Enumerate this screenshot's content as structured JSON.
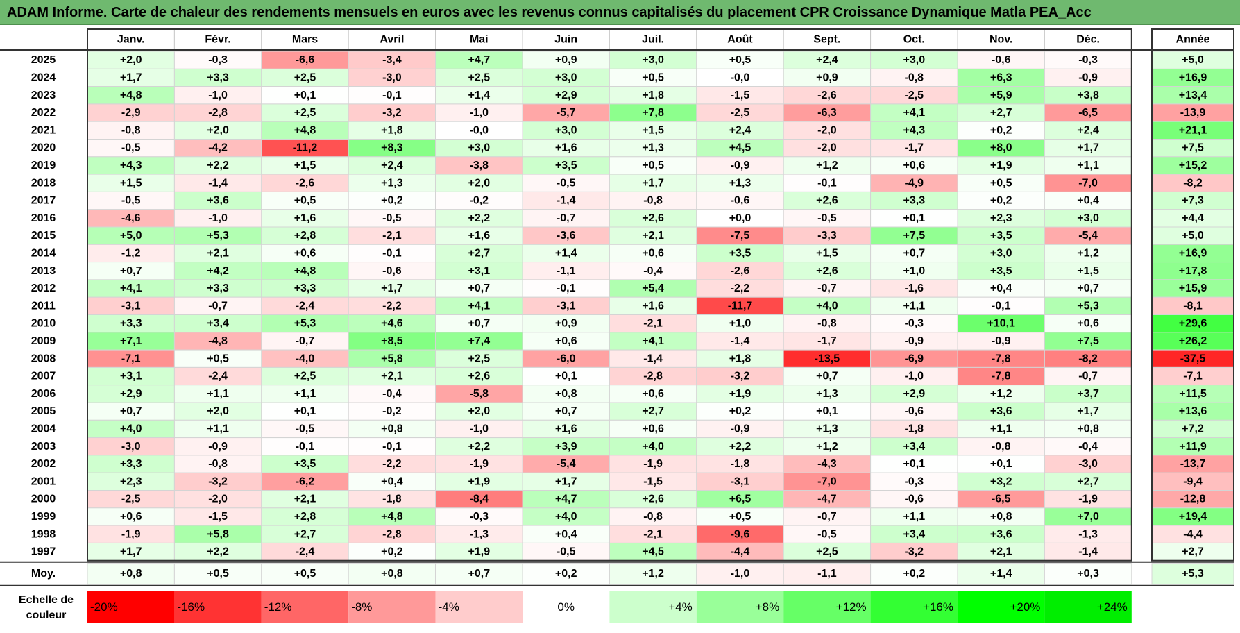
{
  "title": "ADAM Informe. Carte de chaleur des rendements mensuels en euros avec les revenus connus capitalisés du placement CPR Croissance Dynamique Matla PEA_Acc",
  "chart_data": {
    "type": "heatmap",
    "title": "ADAM Informe. Carte de chaleur des rendements mensuels en euros avec les revenus connus capitalisés du placement CPR Croissance Dynamique Matla PEA_Acc",
    "columns": [
      "Janv.",
      "Févr.",
      "Mars",
      "Avril",
      "Mai",
      "Juin",
      "Juil.",
      "Août",
      "Sept.",
      "Oct.",
      "Nov.",
      "Déc."
    ],
    "annual_column": "Année",
    "rows": [
      {
        "year": "2025",
        "values": [
          "+2,0",
          "-0,3",
          "-6,6",
          "-3,4",
          "+4,7",
          "+0,9",
          "+3,0",
          "+0,5",
          "+2,4",
          "+3,0",
          "-0,6",
          "-0,3"
        ],
        "annual": "+5,0"
      },
      {
        "year": "2024",
        "values": [
          "+1,7",
          "+3,3",
          "+2,5",
          "-3,0",
          "+2,5",
          "+3,0",
          "+0,5",
          "-0,0",
          "+0,9",
          "-0,8",
          "+6,3",
          "-0,9"
        ],
        "annual": "+16,9"
      },
      {
        "year": "2023",
        "values": [
          "+4,8",
          "-1,0",
          "+0,1",
          "-0,1",
          "+1,4",
          "+2,9",
          "+1,8",
          "-1,5",
          "-2,6",
          "-2,5",
          "+5,9",
          "+3,8"
        ],
        "annual": "+13,4"
      },
      {
        "year": "2022",
        "values": [
          "-2,9",
          "-2,8",
          "+2,5",
          "-3,2",
          "-1,0",
          "-5,7",
          "+7,8",
          "-2,5",
          "-6,3",
          "+4,1",
          "+2,7",
          "-6,5"
        ],
        "annual": "-13,9"
      },
      {
        "year": "2021",
        "values": [
          "-0,8",
          "+2,0",
          "+4,8",
          "+1,8",
          "-0,0",
          "+3,0",
          "+1,5",
          "+2,4",
          "-2,0",
          "+4,3",
          "+0,2",
          "+2,4"
        ],
        "annual": "+21,1"
      },
      {
        "year": "2020",
        "values": [
          "-0,5",
          "-4,2",
          "-11,2",
          "+8,3",
          "+3,0",
          "+1,6",
          "+1,3",
          "+4,5",
          "-2,0",
          "-1,7",
          "+8,0",
          "+1,7"
        ],
        "annual": "+7,5"
      },
      {
        "year": "2019",
        "values": [
          "+4,3",
          "+2,2",
          "+1,5",
          "+2,4",
          "-3,8",
          "+3,5",
          "+0,5",
          "-0,9",
          "+1,2",
          "+0,6",
          "+1,9",
          "+1,1"
        ],
        "annual": "+15,2"
      },
      {
        "year": "2018",
        "values": [
          "+1,5",
          "-1,4",
          "-2,6",
          "+1,3",
          "+2,0",
          "-0,5",
          "+1,7",
          "+1,3",
          "-0,1",
          "-4,9",
          "+0,5",
          "-7,0"
        ],
        "annual": "-8,2"
      },
      {
        "year": "2017",
        "values": [
          "-0,5",
          "+3,6",
          "+0,5",
          "+0,2",
          "-0,2",
          "-1,4",
          "-0,8",
          "-0,6",
          "+2,6",
          "+3,3",
          "+0,2",
          "+0,4"
        ],
        "annual": "+7,3"
      },
      {
        "year": "2016",
        "values": [
          "-4,6",
          "-1,0",
          "+1,6",
          "-0,5",
          "+2,2",
          "-0,7",
          "+2,6",
          "+0,0",
          "-0,5",
          "+0,1",
          "+2,3",
          "+3,0"
        ],
        "annual": "+4,4"
      },
      {
        "year": "2015",
        "values": [
          "+5,0",
          "+5,3",
          "+2,8",
          "-2,1",
          "+1,6",
          "-3,6",
          "+2,1",
          "-7,5",
          "-3,3",
          "+7,5",
          "+3,5",
          "-5,4"
        ],
        "annual": "+5,0"
      },
      {
        "year": "2014",
        "values": [
          "-1,2",
          "+2,1",
          "+0,6",
          "-0,1",
          "+2,7",
          "+1,4",
          "+0,6",
          "+3,5",
          "+1,5",
          "+0,7",
          "+3,0",
          "+1,2"
        ],
        "annual": "+16,9"
      },
      {
        "year": "2013",
        "values": [
          "+0,7",
          "+4,2",
          "+4,8",
          "-0,6",
          "+3,1",
          "-1,1",
          "-0,4",
          "-2,6",
          "+2,6",
          "+1,0",
          "+3,5",
          "+1,5"
        ],
        "annual": "+17,8"
      },
      {
        "year": "2012",
        "values": [
          "+4,1",
          "+3,3",
          "+3,3",
          "+1,7",
          "+0,7",
          "-0,1",
          "+5,4",
          "-2,2",
          "-0,7",
          "-1,6",
          "+0,4",
          "+0,7"
        ],
        "annual": "+15,9"
      },
      {
        "year": "2011",
        "values": [
          "-3,1",
          "-0,7",
          "-2,4",
          "-2,2",
          "+4,1",
          "-3,1",
          "+1,6",
          "-11,7",
          "+4,0",
          "+1,1",
          "-0,1",
          "+5,3"
        ],
        "annual": "-8,1"
      },
      {
        "year": "2010",
        "values": [
          "+3,3",
          "+3,4",
          "+5,3",
          "+4,6",
          "+0,7",
          "+0,9",
          "-2,1",
          "+1,0",
          "-0,8",
          "-0,3",
          "+10,1",
          "+0,6"
        ],
        "annual": "+29,6"
      },
      {
        "year": "2009",
        "values": [
          "+7,1",
          "-4,8",
          "-0,7",
          "+8,5",
          "+7,4",
          "+0,6",
          "+4,1",
          "-1,4",
          "-1,7",
          "-0,9",
          "-0,9",
          "+7,5"
        ],
        "annual": "+26,2"
      },
      {
        "year": "2008",
        "values": [
          "-7,1",
          "+0,5",
          "-4,0",
          "+5,8",
          "+2,5",
          "-6,0",
          "-1,4",
          "+1,8",
          "-13,5",
          "-6,9",
          "-7,8",
          "-8,2"
        ],
        "annual": "-37,5"
      },
      {
        "year": "2007",
        "values": [
          "+3,1",
          "-2,4",
          "+2,5",
          "+2,1",
          "+2,6",
          "+0,1",
          "-2,8",
          "-3,2",
          "+0,7",
          "-1,0",
          "-7,8",
          "-0,7"
        ],
        "annual": "-7,1"
      },
      {
        "year": "2006",
        "values": [
          "+2,9",
          "+1,1",
          "+1,1",
          "-0,4",
          "-5,8",
          "+0,8",
          "+0,6",
          "+1,9",
          "+1,3",
          "+2,9",
          "+1,2",
          "+3,7"
        ],
        "annual": "+11,5"
      },
      {
        "year": "2005",
        "values": [
          "+0,7",
          "+2,0",
          "+0,1",
          "-0,2",
          "+2,0",
          "+0,7",
          "+2,7",
          "+0,2",
          "+0,1",
          "-0,6",
          "+3,6",
          "+1,7"
        ],
        "annual": "+13,6"
      },
      {
        "year": "2004",
        "values": [
          "+4,0",
          "+1,1",
          "-0,5",
          "+0,8",
          "-1,0",
          "+1,6",
          "+0,6",
          "-0,9",
          "+1,3",
          "-1,8",
          "+1,1",
          "+0,8"
        ],
        "annual": "+7,2"
      },
      {
        "year": "2003",
        "values": [
          "-3,0",
          "-0,9",
          "-0,1",
          "-0,1",
          "+2,2",
          "+3,9",
          "+4,0",
          "+2,2",
          "+1,2",
          "+3,4",
          "-0,8",
          "-0,4"
        ],
        "annual": "+11,9"
      },
      {
        "year": "2002",
        "values": [
          "+3,3",
          "-0,8",
          "+3,5",
          "-2,2",
          "-1,9",
          "-5,4",
          "-1,9",
          "-1,8",
          "-4,3",
          "+0,1",
          "+0,1",
          "-3,0"
        ],
        "annual": "-13,7"
      },
      {
        "year": "2001",
        "values": [
          "+2,3",
          "-3,2",
          "-6,2",
          "+0,4",
          "+1,9",
          "+1,7",
          "-1,5",
          "-3,1",
          "-7,0",
          "-0,3",
          "+3,2",
          "+2,7"
        ],
        "annual": "-9,4"
      },
      {
        "year": "2000",
        "values": [
          "-2,5",
          "-2,0",
          "+2,1",
          "-1,8",
          "-8,4",
          "+4,7",
          "+2,6",
          "+6,5",
          "-4,7",
          "-0,6",
          "-6,5",
          "-1,9"
        ],
        "annual": "-12,8"
      },
      {
        "year": "1999",
        "values": [
          "+0,6",
          "-1,5",
          "+2,8",
          "+4,8",
          "-0,3",
          "+4,0",
          "-0,8",
          "+0,5",
          "-0,7",
          "+1,1",
          "+0,8",
          "+7,0"
        ],
        "annual": "+19,4"
      },
      {
        "year": "1998",
        "values": [
          "-1,9",
          "+5,8",
          "+2,7",
          "-2,8",
          "-1,3",
          "+0,4",
          "-2,1",
          "-9,6",
          "-0,5",
          "+3,4",
          "+3,6",
          "-1,3"
        ],
        "annual": "-4,4"
      },
      {
        "year": "1997",
        "values": [
          "+1,7",
          "+2,2",
          "-2,4",
          "+0,2",
          "+1,9",
          "-0,5",
          "+4,5",
          "-4,4",
          "+2,5",
          "-3,2",
          "+2,1",
          "-1,4"
        ],
        "annual": "+2,7"
      }
    ],
    "average": {
      "label": "Moy.",
      "values": [
        "+0,8",
        "+0,5",
        "+0,5",
        "+0,8",
        "+0,7",
        "+0,2",
        "+1,2",
        "-1,0",
        "-1,1",
        "+0,2",
        "+1,4",
        "+0,3"
      ],
      "annual": "+5,3"
    },
    "scale": {
      "label_line1": "Echelle de",
      "label_line2": "couleur",
      "steps": [
        {
          "label": "-20%",
          "color": "#ff0000"
        },
        {
          "label": "-16%",
          "color": "#ff3333"
        },
        {
          "label": "-12%",
          "color": "#ff6666"
        },
        {
          "label": "-8%",
          "color": "#ff9999"
        },
        {
          "label": "-4%",
          "color": "#ffcccc"
        },
        {
          "label": "0%",
          "color": "#ffffff"
        },
        {
          "label": "+4%",
          "color": "#ccffcc"
        },
        {
          "label": "+8%",
          "color": "#99ff99"
        },
        {
          "label": "+12%",
          "color": "#66ff66"
        },
        {
          "label": "+16%",
          "color": "#33ff33"
        },
        {
          "label": "+20%",
          "color": "#00ff00"
        },
        {
          "label": "+24%",
          "color": "#00ee00"
        }
      ]
    },
    "color_scale": {
      "negative": "#ff0000",
      "zero": "#ffffff",
      "positive": "#00ff00",
      "monthly_saturation": 14,
      "annual_saturation": 32
    }
  }
}
